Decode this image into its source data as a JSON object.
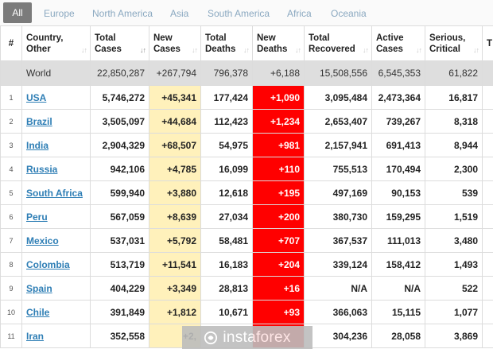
{
  "tabs": [
    "All",
    "Europe",
    "North America",
    "Asia",
    "South America",
    "Africa",
    "Oceania"
  ],
  "headers": {
    "num": "#",
    "country": [
      "Country,",
      "Other"
    ],
    "total_cases": [
      "Total",
      "Cases"
    ],
    "new_cases": [
      "New",
      "Cases"
    ],
    "total_deaths": [
      "Total",
      "Deaths"
    ],
    "new_deaths": [
      "New",
      "Deaths"
    ],
    "total_recovered": [
      "Total",
      "Recovered"
    ],
    "active_cases": [
      "Active",
      "Cases"
    ],
    "serious": [
      "Serious,",
      "Critical"
    ],
    "extra": "T"
  },
  "world": {
    "country": "World",
    "total_cases": "22,850,287",
    "new_cases": "+267,794",
    "total_deaths": "796,378",
    "new_deaths": "+6,188",
    "total_recovered": "15,508,556",
    "active_cases": "6,545,353",
    "serious": "61,822"
  },
  "rows": [
    {
      "num": "1",
      "country": "USA",
      "total_cases": "5,746,272",
      "new_cases": "+45,341",
      "total_deaths": "177,424",
      "new_deaths": "+1,090",
      "total_recovered": "3,095,484",
      "active_cases": "2,473,364",
      "serious": "16,817"
    },
    {
      "num": "2",
      "country": "Brazil",
      "total_cases": "3,505,097",
      "new_cases": "+44,684",
      "total_deaths": "112,423",
      "new_deaths": "+1,234",
      "total_recovered": "2,653,407",
      "active_cases": "739,267",
      "serious": "8,318"
    },
    {
      "num": "3",
      "country": "India",
      "total_cases": "2,904,329",
      "new_cases": "+68,507",
      "total_deaths": "54,975",
      "new_deaths": "+981",
      "total_recovered": "2,157,941",
      "active_cases": "691,413",
      "serious": "8,944"
    },
    {
      "num": "4",
      "country": "Russia",
      "total_cases": "942,106",
      "new_cases": "+4,785",
      "total_deaths": "16,099",
      "new_deaths": "+110",
      "total_recovered": "755,513",
      "active_cases": "170,494",
      "serious": "2,300"
    },
    {
      "num": "5",
      "country": "South Africa",
      "total_cases": "599,940",
      "new_cases": "+3,880",
      "total_deaths": "12,618",
      "new_deaths": "+195",
      "total_recovered": "497,169",
      "active_cases": "90,153",
      "serious": "539"
    },
    {
      "num": "6",
      "country": "Peru",
      "total_cases": "567,059",
      "new_cases": "+8,639",
      "total_deaths": "27,034",
      "new_deaths": "+200",
      "total_recovered": "380,730",
      "active_cases": "159,295",
      "serious": "1,519"
    },
    {
      "num": "7",
      "country": "Mexico",
      "total_cases": "537,031",
      "new_cases": "+5,792",
      "total_deaths": "58,481",
      "new_deaths": "+707",
      "total_recovered": "367,537",
      "active_cases": "111,013",
      "serious": "3,480"
    },
    {
      "num": "8",
      "country": "Colombia",
      "total_cases": "513,719",
      "new_cases": "+11,541",
      "total_deaths": "16,183",
      "new_deaths": "+204",
      "total_recovered": "339,124",
      "active_cases": "158,412",
      "serious": "1,493"
    },
    {
      "num": "9",
      "country": "Spain",
      "total_cases": "404,229",
      "new_cases": "+3,349",
      "total_deaths": "28,813",
      "new_deaths": "+16",
      "total_recovered": "N/A",
      "active_cases": "N/A",
      "serious": "522"
    },
    {
      "num": "10",
      "country": "Chile",
      "total_cases": "391,849",
      "new_cases": "+1,812",
      "total_deaths": "10,671",
      "new_deaths": "+93",
      "total_recovered": "366,063",
      "active_cases": "15,115",
      "serious": "1,077"
    },
    {
      "num": "11",
      "country": "Iran",
      "total_cases": "352,558",
      "new_cases": "+2,",
      "total_deaths": "",
      "new_deaths": "",
      "total_recovered": "304,236",
      "active_cases": "28,058",
      "serious": "3,869"
    }
  ],
  "watermark": {
    "text": "instaforex",
    "icon": "instaforex-logo-icon"
  },
  "colors": {
    "new_cases_bg": "#fff1bb",
    "new_deaths_bg": "#ff0000",
    "world_bg": "#dedede",
    "link": "#2e7eb5",
    "active_tab": "#7b7b7b"
  }
}
